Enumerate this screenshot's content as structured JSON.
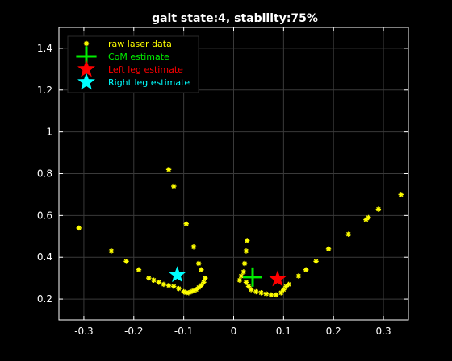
{
  "chart_data": {
    "type": "scatter",
    "title": "gait state:4, stability:75%",
    "xlabel": "",
    "ylabel": "",
    "xlim": [
      -0.35,
      0.35
    ],
    "ylim": [
      0.1,
      1.5
    ],
    "xticks": [
      -0.3,
      -0.2,
      -0.1,
      0,
      0.1,
      0.2,
      0.3
    ],
    "xtick_labels": [
      "-0.3",
      "-0.2",
      "-0.1",
      "0",
      "0.1",
      "0.2",
      "0.3"
    ],
    "yticks": [
      0.2,
      0.4,
      0.6,
      0.8,
      1.0,
      1.2,
      1.4
    ],
    "ytick_labels": [
      "0.2",
      "0.4",
      "0.6",
      "0.8",
      "1",
      "1.2",
      "1.4"
    ],
    "grid": true,
    "legend_position": "top-left",
    "background": "#000000",
    "series": [
      {
        "name": "raw laser data",
        "marker": "asterisk",
        "color": "#ffff00",
        "points": [
          [
            -0.31,
            0.54
          ],
          [
            -0.245,
            0.43
          ],
          [
            -0.215,
            0.38
          ],
          [
            -0.19,
            0.34
          ],
          [
            -0.17,
            0.3
          ],
          [
            -0.16,
            0.29
          ],
          [
            -0.15,
            0.28
          ],
          [
            -0.14,
            0.27
          ],
          [
            -0.13,
            0.265
          ],
          [
            -0.12,
            0.26
          ],
          [
            -0.11,
            0.25
          ],
          [
            -0.1,
            0.235
          ],
          [
            -0.095,
            0.23
          ],
          [
            -0.09,
            0.23
          ],
          [
            -0.085,
            0.235
          ],
          [
            -0.08,
            0.24
          ],
          [
            -0.075,
            0.245
          ],
          [
            -0.07,
            0.255
          ],
          [
            -0.065,
            0.265
          ],
          [
            -0.06,
            0.28
          ],
          [
            -0.057,
            0.3
          ],
          [
            -0.065,
            0.34
          ],
          [
            -0.07,
            0.37
          ],
          [
            -0.08,
            0.45
          ],
          [
            -0.095,
            0.56
          ],
          [
            -0.12,
            0.74
          ],
          [
            -0.13,
            0.82
          ],
          [
            0.012,
            0.29
          ],
          [
            0.015,
            0.31
          ],
          [
            0.02,
            0.33
          ],
          [
            0.022,
            0.37
          ],
          [
            0.025,
            0.43
          ],
          [
            0.027,
            0.48
          ],
          [
            0.025,
            0.28
          ],
          [
            0.03,
            0.26
          ],
          [
            0.035,
            0.245
          ],
          [
            0.045,
            0.235
          ],
          [
            0.055,
            0.23
          ],
          [
            0.065,
            0.225
          ],
          [
            0.075,
            0.22
          ],
          [
            0.085,
            0.22
          ],
          [
            0.095,
            0.23
          ],
          [
            0.1,
            0.245
          ],
          [
            0.105,
            0.26
          ],
          [
            0.11,
            0.27
          ],
          [
            0.13,
            0.31
          ],
          [
            0.145,
            0.34
          ],
          [
            0.165,
            0.38
          ],
          [
            0.19,
            0.44
          ],
          [
            0.23,
            0.51
          ],
          [
            0.265,
            0.58
          ],
          [
            0.27,
            0.59
          ],
          [
            0.29,
            0.63
          ],
          [
            0.335,
            0.7
          ]
        ]
      },
      {
        "name": "CoM estimate",
        "marker": "plus",
        "color": "#00ee00",
        "points": [
          [
            0.038,
            0.305
          ]
        ]
      },
      {
        "name": "Left leg estimate",
        "marker": "star",
        "color": "#ff0000",
        "points": [
          [
            0.088,
            0.295
          ]
        ]
      },
      {
        "name": "Right leg estimate",
        "marker": "star",
        "color": "#00ffff",
        "points": [
          [
            -0.113,
            0.315
          ]
        ]
      }
    ]
  }
}
